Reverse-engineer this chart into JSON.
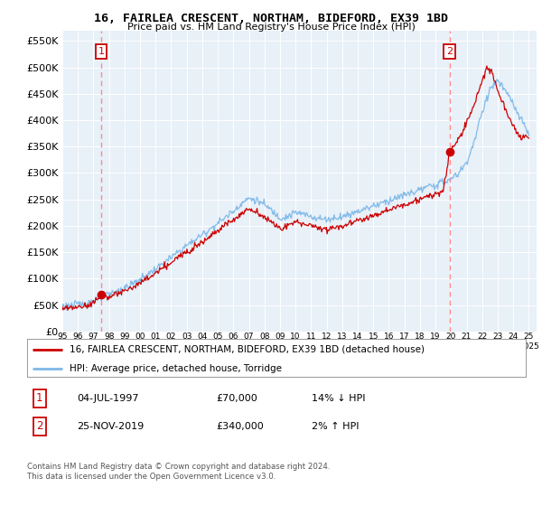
{
  "title": "16, FAIRLEA CRESCENT, NORTHAM, BIDEFORD, EX39 1BD",
  "subtitle": "Price paid vs. HM Land Registry's House Price Index (HPI)",
  "legend_line1": "16, FAIRLEA CRESCENT, NORTHAM, BIDEFORD, EX39 1BD (detached house)",
  "legend_line2": "HPI: Average price, detached house, Torridge",
  "table_row1": [
    "1",
    "04-JUL-1997",
    "£70,000",
    "14% ↓ HPI"
  ],
  "table_row2": [
    "2",
    "25-NOV-2019",
    "£340,000",
    "2% ↑ HPI"
  ],
  "footnote": "Contains HM Land Registry data © Crown copyright and database right 2024.\nThis data is licensed under the Open Government Licence v3.0.",
  "marker1_year": 1997.5,
  "marker1_price": 70000,
  "marker2_year": 2019.9,
  "marker2_price": 340000,
  "hpi_color": "#7EB8E8",
  "price_color": "#CC0000",
  "marker_color": "#CC0000",
  "vline_color": "#FF8888",
  "background_color": "#E8F0F8",
  "ylim": [
    0,
    570000
  ],
  "yticks": [
    0,
    50000,
    100000,
    150000,
    200000,
    250000,
    300000,
    350000,
    400000,
    450000,
    500000,
    550000
  ],
  "xmin": 1995,
  "xmax": 2025.5
}
